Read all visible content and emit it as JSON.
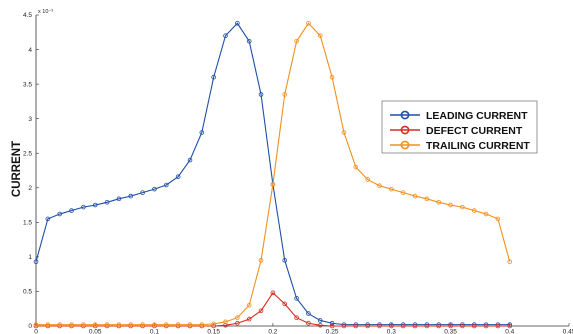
{
  "chart_data": {
    "type": "line",
    "title": "",
    "xlabel": "",
    "ylabel": "CURRENT",
    "y_scale_label": "x 10⁻³",
    "xlim": [
      0,
      0.45
    ],
    "ylim": [
      0,
      4.5
    ],
    "x_ticks": [
      "0",
      "0.05",
      "0.1",
      "0.15",
      "0.2",
      "0.25",
      "0.3",
      "0.35",
      "0.4",
      "0.45"
    ],
    "y_ticks": [
      "0",
      "0.5",
      "1",
      "1.5",
      "2",
      "2.5",
      "3",
      "3.5",
      "4",
      "4.5"
    ],
    "grid": false,
    "legend_position": "right",
    "x": [
      0,
      0.01,
      0.02,
      0.03,
      0.04,
      0.05,
      0.06,
      0.07,
      0.08,
      0.09,
      0.1,
      0.11,
      0.12,
      0.13,
      0.14,
      0.15,
      0.16,
      0.17,
      0.18,
      0.19,
      0.2,
      0.21,
      0.22,
      0.23,
      0.24,
      0.25,
      0.26,
      0.27,
      0.28,
      0.29,
      0.3,
      0.31,
      0.32,
      0.33,
      0.34,
      0.35,
      0.36,
      0.37,
      0.38,
      0.39,
      0.4
    ],
    "series": [
      {
        "name": "LEADING CURRENT",
        "color": "#1f4fa8",
        "values": [
          0.93,
          1.55,
          1.62,
          1.67,
          1.72,
          1.75,
          1.79,
          1.84,
          1.88,
          1.93,
          1.98,
          2.04,
          2.16,
          2.4,
          2.8,
          3.6,
          4.2,
          4.38,
          4.12,
          3.35,
          2.05,
          0.95,
          0.4,
          0.18,
          0.08,
          0.04,
          0.02,
          0.02,
          0.02,
          0.02,
          0.02,
          0.02,
          0.02,
          0.02,
          0.02,
          0.02,
          0.02,
          0.02,
          0.02,
          0.02,
          0.02
        ]
      },
      {
        "name": "DEFECT CURRENT",
        "color": "#d62e1f",
        "values": [
          0,
          0,
          0,
          0,
          0,
          0,
          0,
          0,
          0,
          0,
          0,
          0,
          0,
          0,
          0,
          0,
          0.01,
          0.04,
          0.1,
          0.22,
          0.48,
          0.32,
          0.12,
          0.04,
          0.01,
          0,
          0,
          0,
          0,
          0,
          0,
          0,
          0,
          0,
          0,
          0,
          0,
          0,
          0,
          0,
          0
        ]
      },
      {
        "name": "TRAILING CURRENT",
        "color": "#f0901e",
        "values": [
          0.02,
          0.02,
          0.02,
          0.02,
          0.02,
          0.02,
          0.02,
          0.02,
          0.02,
          0.02,
          0.02,
          0.02,
          0.02,
          0.02,
          0.02,
          0.03,
          0.06,
          0.12,
          0.3,
          0.95,
          2.05,
          3.35,
          4.12,
          4.38,
          4.2,
          3.6,
          2.8,
          2.3,
          2.12,
          2.03,
          1.98,
          1.93,
          1.88,
          1.84,
          1.79,
          1.75,
          1.72,
          1.67,
          1.62,
          1.55,
          0.93
        ]
      }
    ]
  }
}
